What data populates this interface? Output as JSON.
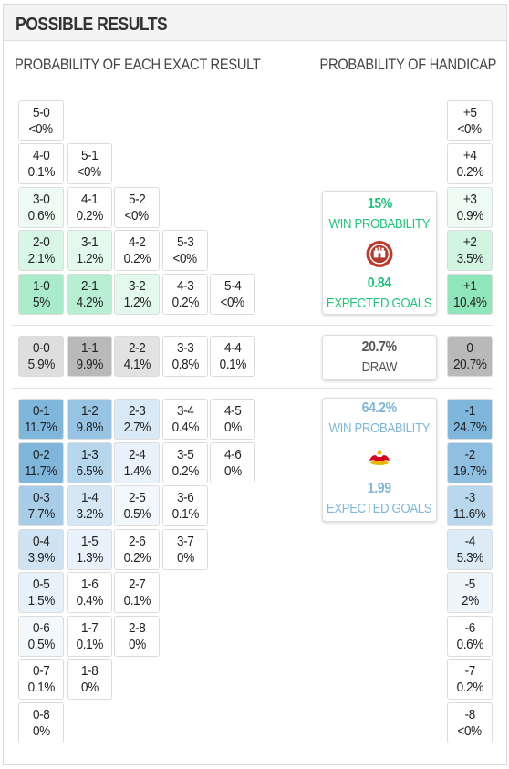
{
  "header": {
    "title": "POSSIBLE RESULTS"
  },
  "columns": {
    "exact_title": "PROBABILITY OF EACH EXACT RESULT",
    "handicap_title": "PROBABILITY OF HANDICAP"
  },
  "colors": {
    "home_accent": "#22c47a",
    "away_accent": "#7fb6dc",
    "draw_accent": "#bdbdbd"
  },
  "home": {
    "win_probability": "15%",
    "win_label": "WIN PROBABILITY",
    "expected_goals": "0.84",
    "expected_label": "EXPECTED GOALS",
    "crest_icon": "st-pauli-crest-icon"
  },
  "draw": {
    "probability": "20.7%",
    "label": "DRAW"
  },
  "away": {
    "win_probability": "64.2%",
    "win_label": "WIN PROBABILITY",
    "expected_goals": "1.99",
    "expected_label": "EXPECTED GOALS",
    "crest_icon": "rb-leipzig-crest-icon"
  },
  "exact_results": [
    {
      "score": "5-0",
      "prob": "<0%",
      "shade": "#ffffff"
    },
    {
      "score": "4-0",
      "prob": "0.1%",
      "shade": "#ffffff"
    },
    {
      "score": "5-1",
      "prob": "<0%",
      "shade": "#ffffff"
    },
    {
      "score": "3-0",
      "prob": "0.6%",
      "shade": "#eefbf4"
    },
    {
      "score": "4-1",
      "prob": "0.2%",
      "shade": "#ffffff"
    },
    {
      "score": "5-2",
      "prob": "<0%",
      "shade": "#ffffff"
    },
    {
      "score": "2-0",
      "prob": "2.1%",
      "shade": "#d8f6e6"
    },
    {
      "score": "3-1",
      "prob": "1.2%",
      "shade": "#e4f9ee"
    },
    {
      "score": "4-2",
      "prob": "0.2%",
      "shade": "#ffffff"
    },
    {
      "score": "5-3",
      "prob": "<0%",
      "shade": "#ffffff"
    },
    {
      "score": "1-0",
      "prob": "5%",
      "shade": "#a9ecc9"
    },
    {
      "score": "2-1",
      "prob": "4.2%",
      "shade": "#b8efd3"
    },
    {
      "score": "3-2",
      "prob": "1.2%",
      "shade": "#e4f9ee"
    },
    {
      "score": "4-3",
      "prob": "0.2%",
      "shade": "#ffffff"
    },
    {
      "score": "5-4",
      "prob": "<0%",
      "shade": "#ffffff"
    },
    {
      "score": "0-0",
      "prob": "5.9%",
      "shade": "#dedede"
    },
    {
      "score": "1-1",
      "prob": "9.9%",
      "shade": "#b9b9b9"
    },
    {
      "score": "2-2",
      "prob": "4.1%",
      "shade": "#e2e2e2"
    },
    {
      "score": "3-3",
      "prob": "0.8%",
      "shade": "#ffffff"
    },
    {
      "score": "4-4",
      "prob": "0.1%",
      "shade": "#ffffff"
    },
    {
      "score": "0-1",
      "prob": "11.7%",
      "shade": "#7fb6dc"
    },
    {
      "score": "1-2",
      "prob": "9.8%",
      "shade": "#97c4e3"
    },
    {
      "score": "2-3",
      "prob": "2.7%",
      "shade": "#d9e9f5"
    },
    {
      "score": "3-4",
      "prob": "0.4%",
      "shade": "#ffffff"
    },
    {
      "score": "4-5",
      "prob": "0%",
      "shade": "#ffffff"
    },
    {
      "score": "0-2",
      "prob": "11.7%",
      "shade": "#7fb6dc"
    },
    {
      "score": "1-3",
      "prob": "6.5%",
      "shade": "#b6d6ed"
    },
    {
      "score": "2-4",
      "prob": "1.4%",
      "shade": "#e9f2fa"
    },
    {
      "score": "3-5",
      "prob": "0.2%",
      "shade": "#ffffff"
    },
    {
      "score": "4-6",
      "prob": "0%",
      "shade": "#ffffff"
    },
    {
      "score": "0-3",
      "prob": "7.7%",
      "shade": "#a8cde9"
    },
    {
      "score": "1-4",
      "prob": "3.2%",
      "shade": "#d5e7f4"
    },
    {
      "score": "2-5",
      "prob": "0.5%",
      "shade": "#f3f8fc"
    },
    {
      "score": "3-6",
      "prob": "0.1%",
      "shade": "#ffffff"
    },
    {
      "score": "0-4",
      "prob": "3.9%",
      "shade": "#cfe3f2"
    },
    {
      "score": "1-5",
      "prob": "1.3%",
      "shade": "#e9f2fa"
    },
    {
      "score": "2-6",
      "prob": "0.2%",
      "shade": "#ffffff"
    },
    {
      "score": "3-7",
      "prob": "0%",
      "shade": "#ffffff"
    },
    {
      "score": "0-5",
      "prob": "1.5%",
      "shade": "#e7f1f9"
    },
    {
      "score": "1-6",
      "prob": "0.4%",
      "shade": "#ffffff"
    },
    {
      "score": "2-7",
      "prob": "0.1%",
      "shade": "#ffffff"
    },
    {
      "score": "0-6",
      "prob": "0.5%",
      "shade": "#f3f8fc"
    },
    {
      "score": "1-7",
      "prob": "0.1%",
      "shade": "#ffffff"
    },
    {
      "score": "2-8",
      "prob": "0%",
      "shade": "#ffffff"
    },
    {
      "score": "0-7",
      "prob": "0.1%",
      "shade": "#ffffff"
    },
    {
      "score": "1-8",
      "prob": "0%",
      "shade": "#ffffff"
    },
    {
      "score": "0-8",
      "prob": "0%",
      "shade": "#ffffff"
    }
  ],
  "handicaps": [
    {
      "label": "+5",
      "prob": "<0%",
      "shade": "#ffffff"
    },
    {
      "label": "+4",
      "prob": "0.2%",
      "shade": "#ffffff"
    },
    {
      "label": "+3",
      "prob": "0.9%",
      "shade": "#eefbf4"
    },
    {
      "label": "+2",
      "prob": "3.5%",
      "shade": "#d2f5e2"
    },
    {
      "label": "+1",
      "prob": "10.4%",
      "shade": "#8fe6bb"
    },
    {
      "label": "0",
      "prob": "20.7%",
      "shade": "#b9b9b9"
    },
    {
      "label": "-1",
      "prob": "24.7%",
      "shade": "#7fb6dc"
    },
    {
      "label": "-2",
      "prob": "19.7%",
      "shade": "#8fbfe1"
    },
    {
      "label": "-3",
      "prob": "11.6%",
      "shade": "#b9d8ee"
    },
    {
      "label": "-4",
      "prob": "5.3%",
      "shade": "#dcebf6"
    },
    {
      "label": "-5",
      "prob": "2%",
      "shade": "#eef5fb"
    },
    {
      "label": "-6",
      "prob": "0.6%",
      "shade": "#ffffff"
    },
    {
      "label": "-7",
      "prob": "0.2%",
      "shade": "#ffffff"
    },
    {
      "label": "-8",
      "prob": "<0%",
      "shade": "#ffffff"
    }
  ]
}
